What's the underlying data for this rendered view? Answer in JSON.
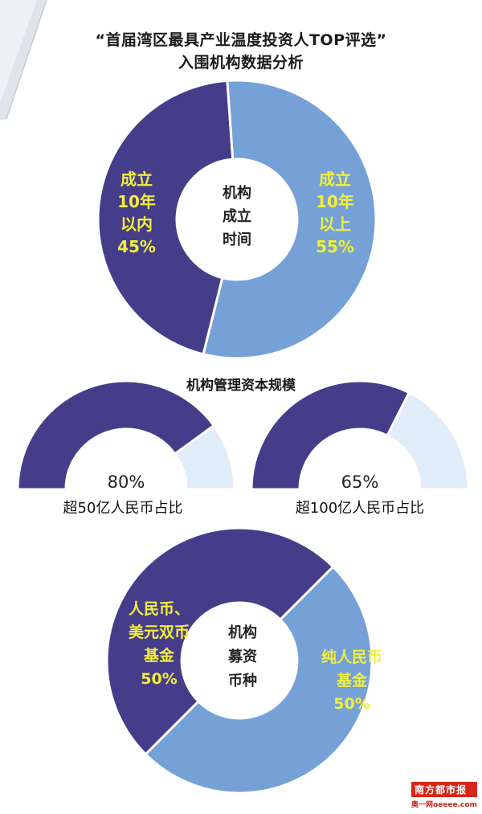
{
  "header": {
    "title_line1": "“首届湾区最具产业温度投资人TOP评选”",
    "title_line2": "入围机构数据分析"
  },
  "colors": {
    "dark": "#463d8a",
    "light": "#75a1d7",
    "pale": "#e0ecf8",
    "highlight": "#f2ef3a",
    "center_text": "#222222"
  },
  "chart_data": [
    {
      "type": "pie",
      "center_label": [
        "机构",
        "成立",
        "时间"
      ],
      "slices": [
        {
          "label": [
            "成立",
            "10年",
            "以内",
            "45%"
          ],
          "value": 45
        },
        {
          "label": [
            "成立",
            "10年",
            "以上",
            "55%"
          ],
          "value": 55
        }
      ]
    },
    {
      "type": "pie",
      "title": "机构管理资本规模",
      "value_label": "80%",
      "caption": "超50亿人民币占比",
      "value": 80
    },
    {
      "type": "pie",
      "value_label": "65%",
      "caption": "超100亿人民币占比",
      "value": 65
    },
    {
      "type": "pie",
      "center_label": [
        "机构",
        "募资",
        "币种"
      ],
      "slices": [
        {
          "label": [
            "人民币、",
            "美元双币",
            "基金",
            "50%"
          ],
          "value": 50
        },
        {
          "label": [
            "纯人民币",
            "基金",
            "50%"
          ],
          "value": 50
        }
      ]
    }
  ],
  "logo": {
    "top": "南方都市报",
    "bottom": "奥一网oeeee.com"
  }
}
